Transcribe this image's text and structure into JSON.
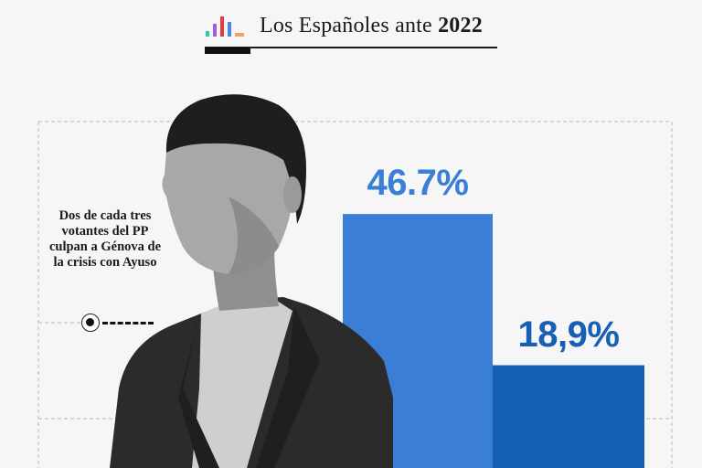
{
  "header": {
    "title": "Los Españoles ante",
    "year": "2022",
    "logo": "bar-chart-logo-icon",
    "logo_colors": [
      "#2ec4b6",
      "#a35bd6",
      "#e63946",
      "#4a86e8",
      "#f4a261"
    ]
  },
  "photo": {
    "subject": "person-photo"
  },
  "annotation": {
    "text": "Dos de cada tres votantes del PP culpan a Génova de la crisis con Ayuso"
  },
  "chart_data": {
    "type": "bar",
    "title": "",
    "categories": [
      "",
      ""
    ],
    "values": [
      46.7,
      18.9
    ],
    "value_labels": [
      "46.7%",
      "18,9%"
    ],
    "colors": [
      "#3a7fd5",
      "#1560b4"
    ],
    "label_colors": [
      "#3a7fd5",
      "#1560b4"
    ],
    "ylim": [
      0,
      60
    ],
    "grid": false,
    "xlabel": "",
    "ylabel": ""
  }
}
